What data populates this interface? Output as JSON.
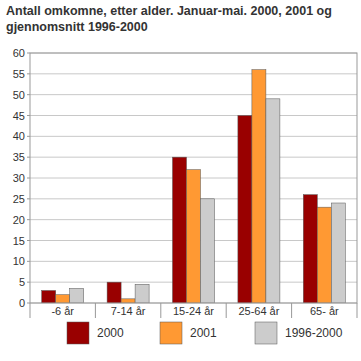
{
  "chart_data": {
    "type": "bar",
    "title": "Antall omkomne, etter alder. Januar-mai. 2000, 2001 og gjennomsnitt 1996-2000",
    "categories": [
      "-6 år",
      "7-14 år",
      "15-24 år",
      "25-64 år",
      "65- år"
    ],
    "series": [
      {
        "name": "2000",
        "color": "#990000",
        "values": [
          3,
          5,
          35,
          45,
          26
        ]
      },
      {
        "name": "2001",
        "color": "#ff9933",
        "values": [
          2,
          1,
          32,
          56,
          23
        ]
      },
      {
        "name": "1996-2000",
        "color": "#cccccc",
        "values": [
          3.5,
          4.5,
          25,
          49,
          24
        ]
      }
    ],
    "ylim": [
      0,
      60
    ],
    "yticks": [
      0,
      5,
      10,
      15,
      20,
      25,
      30,
      35,
      40,
      45,
      50,
      55,
      60
    ],
    "grid": true,
    "legend": "bottom"
  }
}
